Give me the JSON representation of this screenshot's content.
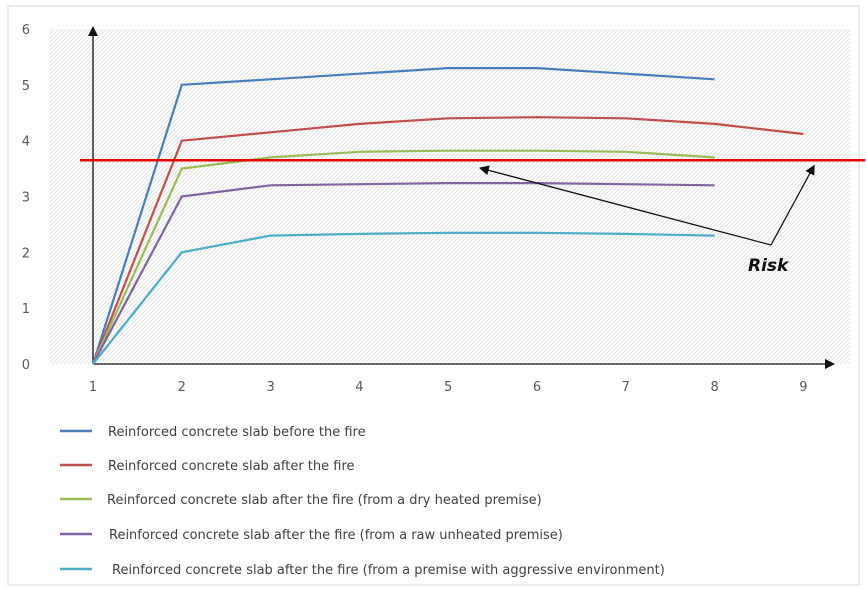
{
  "chart_data": {
    "type": "line",
    "title": "",
    "xlabel": "",
    "ylabel": "",
    "x": [
      1,
      2,
      3,
      4,
      5,
      6,
      7,
      8,
      9
    ],
    "x_ticks": [
      "1",
      "2",
      "3",
      "4",
      "5",
      "6",
      "7",
      "8",
      "9"
    ],
    "y_ticks": [
      "0",
      "1",
      "2",
      "3",
      "4",
      "5",
      "6"
    ],
    "xlim": [
      1,
      9.7
    ],
    "ylim": [
      0,
      6
    ],
    "grid": "hatched background",
    "legend_position": "bottom",
    "series": [
      {
        "name": "Reinforced concrete slab before the fire",
        "color": "#4a7ebb",
        "x": [
          1,
          2,
          3,
          4,
          5,
          6,
          7,
          8
        ],
        "values": [
          0,
          5.0,
          5.1,
          5.2,
          5.3,
          5.3,
          5.2,
          5.1
        ]
      },
      {
        "name": "Reinforced concrete slab after the fire",
        "color": "#c0504d",
        "x": [
          1,
          2,
          3,
          4,
          5,
          6,
          7,
          8,
          9
        ],
        "values": [
          0,
          4.0,
          4.15,
          4.3,
          4.4,
          4.42,
          4.4,
          4.3,
          4.12
        ]
      },
      {
        "name": "Reinforced concrete slab after the fire (from a dry heated premise)",
        "color": "#9bbb59",
        "x": [
          1,
          2,
          3,
          4,
          5,
          6,
          7,
          8
        ],
        "values": [
          0,
          3.5,
          3.7,
          3.8,
          3.82,
          3.82,
          3.8,
          3.7
        ]
      },
      {
        "name": "Reinforced concrete slab after the fire (from a raw unheated premise)",
        "color": "#8064a2",
        "x": [
          1,
          2,
          3,
          4,
          5,
          6,
          7,
          8
        ],
        "values": [
          0,
          3.0,
          3.2,
          3.22,
          3.24,
          3.24,
          3.22,
          3.2
        ]
      },
      {
        "name": "Reinforced concrete slab after the fire (from a premise with aggressive environment)",
        "color": "#4bacc6",
        "x": [
          1,
          2,
          3,
          4,
          5,
          6,
          7,
          8
        ],
        "values": [
          0,
          2.0,
          2.3,
          2.33,
          2.35,
          2.35,
          2.33,
          2.3
        ]
      }
    ],
    "threshold": {
      "value": 3.65,
      "color": "#e00000"
    },
    "annotation": {
      "text": "Risk",
      "points_to": [
        [
          5.4,
          3.6
        ],
        [
          9.1,
          3.6
        ]
      ]
    }
  }
}
